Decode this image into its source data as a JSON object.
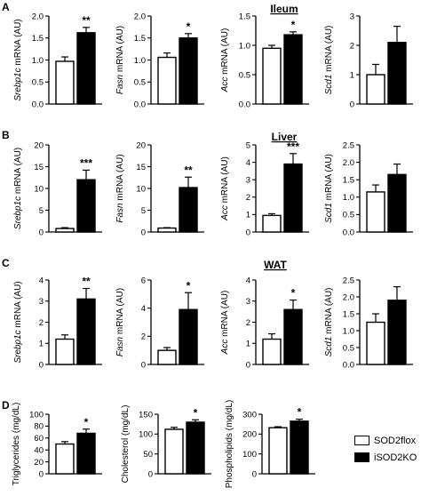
{
  "colors": {
    "SOD2flox": "#ffffff",
    "iSOD2KO": "#000000",
    "axis": "#000000"
  },
  "legend": [
    {
      "name": "SOD2flox",
      "color": "#ffffff"
    },
    {
      "name": "iSOD2KO",
      "color": "#000000"
    }
  ],
  "panels": [
    {
      "letter": "A",
      "title": "Ileum"
    },
    {
      "letter": "B",
      "title": "Liver"
    },
    {
      "letter": "C",
      "title": "WAT"
    },
    {
      "letter": "D",
      "title": ""
    }
  ],
  "chart_data": [
    {
      "type": "bar",
      "panel": "A",
      "gene": "Srebp1c",
      "ylabel_suffix": " mRNA (AU)",
      "categories": [
        "SOD2flox",
        "iSOD2KO"
      ],
      "values": [
        0.97,
        1.62
      ],
      "errors": [
        0.1,
        0.12
      ],
      "ylim": [
        0,
        2.0
      ],
      "yticks": [
        "0.0",
        "0.5",
        "1.0",
        "1.5",
        "2.0"
      ],
      "significance": "**"
    },
    {
      "type": "bar",
      "panel": "A",
      "gene": "Fasn",
      "ylabel_suffix": " mRNA (AU)",
      "categories": [
        "SOD2flox",
        "iSOD2KO"
      ],
      "values": [
        1.06,
        1.5
      ],
      "errors": [
        0.1,
        0.1
      ],
      "ylim": [
        0,
        2.0
      ],
      "yticks": [
        "0.0",
        "0.5",
        "1.0",
        "1.5",
        "2.0"
      ],
      "significance": "*"
    },
    {
      "type": "bar",
      "panel": "A",
      "gene": "Acc",
      "ylabel_suffix": " mRNA (AU)",
      "categories": [
        "SOD2flox",
        "iSOD2KO"
      ],
      "values": [
        0.95,
        1.18
      ],
      "errors": [
        0.05,
        0.05
      ],
      "ylim": [
        0,
        1.5
      ],
      "yticks": [
        "0.0",
        "0.5",
        "1.0",
        "1.5"
      ],
      "significance": "*"
    },
    {
      "type": "bar",
      "panel": "A",
      "gene": "Scd1",
      "ylabel_suffix": " mRNA (AU)",
      "categories": [
        "SOD2flox",
        "iSOD2KO"
      ],
      "values": [
        1.0,
        2.1
      ],
      "errors": [
        0.35,
        0.55
      ],
      "ylim": [
        0,
        3
      ],
      "yticks": [
        "0",
        "1",
        "2",
        "3"
      ],
      "significance": ""
    },
    {
      "type": "bar",
      "panel": "B",
      "gene": "Srebp1c",
      "ylabel_suffix": " mRNA (AU)",
      "categories": [
        "SOD2flox",
        "iSOD2KO"
      ],
      "values": [
        0.8,
        12.0
      ],
      "errors": [
        0.2,
        2.2
      ],
      "ylim": [
        0,
        20
      ],
      "yticks": [
        "0",
        "5",
        "10",
        "15",
        "20"
      ],
      "significance": "***"
    },
    {
      "type": "bar",
      "panel": "B",
      "gene": "Fasn",
      "ylabel_suffix": " mRNA (AU)",
      "categories": [
        "SOD2flox",
        "iSOD2KO"
      ],
      "values": [
        0.9,
        10.2
      ],
      "errors": [
        0.1,
        2.4
      ],
      "ylim": [
        0,
        20
      ],
      "yticks": [
        "0",
        "5",
        "10",
        "15",
        "20"
      ],
      "significance": "**"
    },
    {
      "type": "bar",
      "panel": "B",
      "gene": "Acc",
      "ylabel_suffix": " mRNA (AU)",
      "categories": [
        "SOD2flox",
        "iSOD2KO"
      ],
      "values": [
        0.95,
        3.9
      ],
      "errors": [
        0.1,
        0.6
      ],
      "ylim": [
        0,
        5
      ],
      "yticks": [
        "0",
        "1",
        "2",
        "3",
        "4",
        "5"
      ],
      "significance": "***"
    },
    {
      "type": "bar",
      "panel": "B",
      "gene": "Scd1",
      "ylabel_suffix": " mRNA (AU)",
      "categories": [
        "SOD2flox",
        "iSOD2KO"
      ],
      "values": [
        1.15,
        1.65
      ],
      "errors": [
        0.2,
        0.3
      ],
      "ylim": [
        0,
        2.5
      ],
      "yticks": [
        "0.0",
        "0.5",
        "1.0",
        "1.5",
        "2.0",
        "2.5"
      ],
      "significance": ""
    },
    {
      "type": "bar",
      "panel": "C",
      "gene": "Srebp1c",
      "ylabel_suffix": " mRNA (AU)",
      "categories": [
        "SOD2flox",
        "iSOD2KO"
      ],
      "values": [
        1.2,
        3.1
      ],
      "errors": [
        0.2,
        0.5
      ],
      "ylim": [
        0,
        4
      ],
      "yticks": [
        "0",
        "1",
        "2",
        "3",
        "4"
      ],
      "significance": "**"
    },
    {
      "type": "bar",
      "panel": "C",
      "gene": "Fasn",
      "ylabel_suffix": " mRNA (AU)",
      "categories": [
        "SOD2flox",
        "iSOD2KO"
      ],
      "values": [
        1.0,
        3.9
      ],
      "errors": [
        0.2,
        1.2
      ],
      "ylim": [
        0,
        6
      ],
      "yticks": [
        "0",
        "2",
        "4",
        "6"
      ],
      "significance": "*"
    },
    {
      "type": "bar",
      "panel": "C",
      "gene": "Acc",
      "ylabel_suffix": " mRNA (AU)",
      "categories": [
        "SOD2flox",
        "iSOD2KO"
      ],
      "values": [
        1.2,
        2.6
      ],
      "errors": [
        0.25,
        0.45
      ],
      "ylim": [
        0,
        4
      ],
      "yticks": [
        "0",
        "1",
        "2",
        "3",
        "4"
      ],
      "significance": "*"
    },
    {
      "type": "bar",
      "panel": "C",
      "gene": "Scd1",
      "ylabel_suffix": " mRNA (AU)",
      "categories": [
        "SOD2flox",
        "iSOD2KO"
      ],
      "values": [
        1.25,
        1.9
      ],
      "errors": [
        0.25,
        0.4
      ],
      "ylim": [
        0,
        2.5
      ],
      "yticks": [
        "0.0",
        "0.5",
        "1.0",
        "1.5",
        "2.0",
        "2.5"
      ],
      "significance": ""
    },
    {
      "type": "bar",
      "panel": "D",
      "gene": "",
      "ylabel_suffix": "Triglycerides (mg/dL)",
      "categories": [
        "SOD2flox",
        "iSOD2KO"
      ],
      "values": [
        50,
        68
      ],
      "errors": [
        4,
        7
      ],
      "ylim": [
        0,
        100
      ],
      "yticks": [
        "0",
        "20",
        "40",
        "60",
        "80",
        "100"
      ],
      "significance": "*"
    },
    {
      "type": "bar",
      "panel": "D",
      "gene": "",
      "ylabel_suffix": "Cholesterol (mg/dL)",
      "categories": [
        "SOD2flox",
        "iSOD2KO"
      ],
      "values": [
        112,
        130
      ],
      "errors": [
        5,
        6
      ],
      "ylim": [
        0,
        150
      ],
      "yticks": [
        "0",
        "50",
        "100",
        "150"
      ],
      "significance": "*"
    },
    {
      "type": "bar",
      "panel": "D",
      "gene": "",
      "ylabel_suffix": "Phospholipids (mg/dL)",
      "categories": [
        "SOD2flox",
        "iSOD2KO"
      ],
      "values": [
        232,
        265
      ],
      "errors": [
        5,
        10
      ],
      "ylim": [
        0,
        300
      ],
      "yticks": [
        "0",
        "100",
        "200",
        "300"
      ],
      "significance": "*"
    }
  ]
}
